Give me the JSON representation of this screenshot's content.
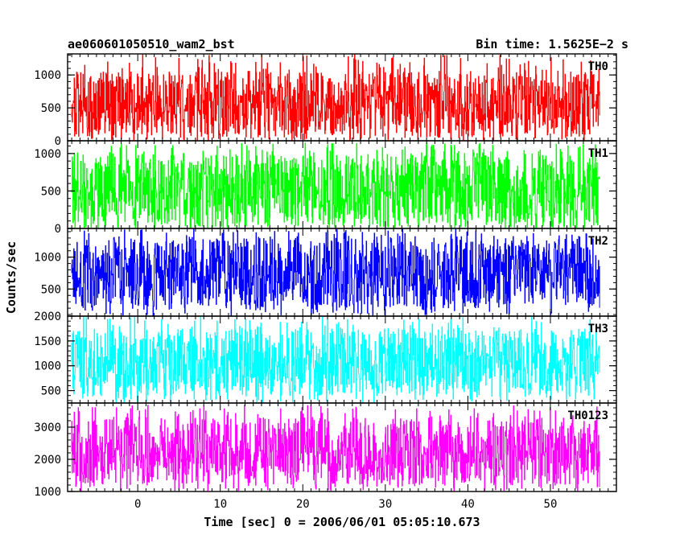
{
  "chart_data": {
    "type": "line",
    "title": "ae060601050510_wam2_bst",
    "bin_time_label": "Bin time: 1.5625E−2 s",
    "xlabel": "Time [sec] 0 = 2006/06/01 05:05:10.673",
    "ylabel": "Counts/sec",
    "xlim": [
      -8.5,
      58
    ],
    "data_xrange": [
      -8,
      56
    ],
    "xticks_major": [
      0,
      10,
      20,
      30,
      40,
      50
    ],
    "xtick_labels": [
      "0",
      "10",
      "20",
      "30",
      "40",
      "50"
    ],
    "grid": false,
    "legend": "none",
    "panels": [
      {
        "name": "TH0",
        "color": "#ff0000",
        "ylim": [
          0,
          1320
        ],
        "yticks": [
          0,
          500,
          1000
        ],
        "ytick_labels": [
          "0",
          "500",
          "1000"
        ],
        "yminor": 100,
        "typical_range": [
          60,
          1050
        ],
        "peak_max": 1320
      },
      {
        "name": "TH1",
        "color": "#00ff00",
        "ylim": [
          0,
          1170
        ],
        "yticks": [
          0,
          500,
          1000
        ],
        "ytick_labels": [
          "0",
          "500",
          "1000"
        ],
        "yminor": 100,
        "typical_range": [
          30,
          1000
        ],
        "peak_max": 1150
      },
      {
        "name": "TH2",
        "color": "#0000ff",
        "ylim": [
          75,
          1450
        ],
        "yticks": [
          500,
          1000
        ],
        "ytick_labels": [
          "500",
          "1000"
        ],
        "yminor": 100,
        "typical_range": [
          200,
          1300
        ],
        "peak_max": 1450
      },
      {
        "name": "TH3",
        "color": "#00ffff",
        "ylim": [
          250,
          2000
        ],
        "yticks": [
          500,
          1000,
          1500,
          2000
        ],
        "ytick_labels": [
          "500",
          "1000",
          "1500",
          "2000"
        ],
        "yminor": 100,
        "typical_range": [
          400,
          1750
        ],
        "peak_max": 2000
      },
      {
        "name": "TH0123",
        "color": "#ff00ff",
        "ylim": [
          1000,
          3750
        ],
        "yticks": [
          1000,
          2000,
          3000
        ],
        "ytick_labels": [
          "1000",
          "2000",
          "3000"
        ],
        "yminor": 200,
        "typical_range": [
          1200,
          3300
        ],
        "peak_max": 3700
      }
    ]
  }
}
